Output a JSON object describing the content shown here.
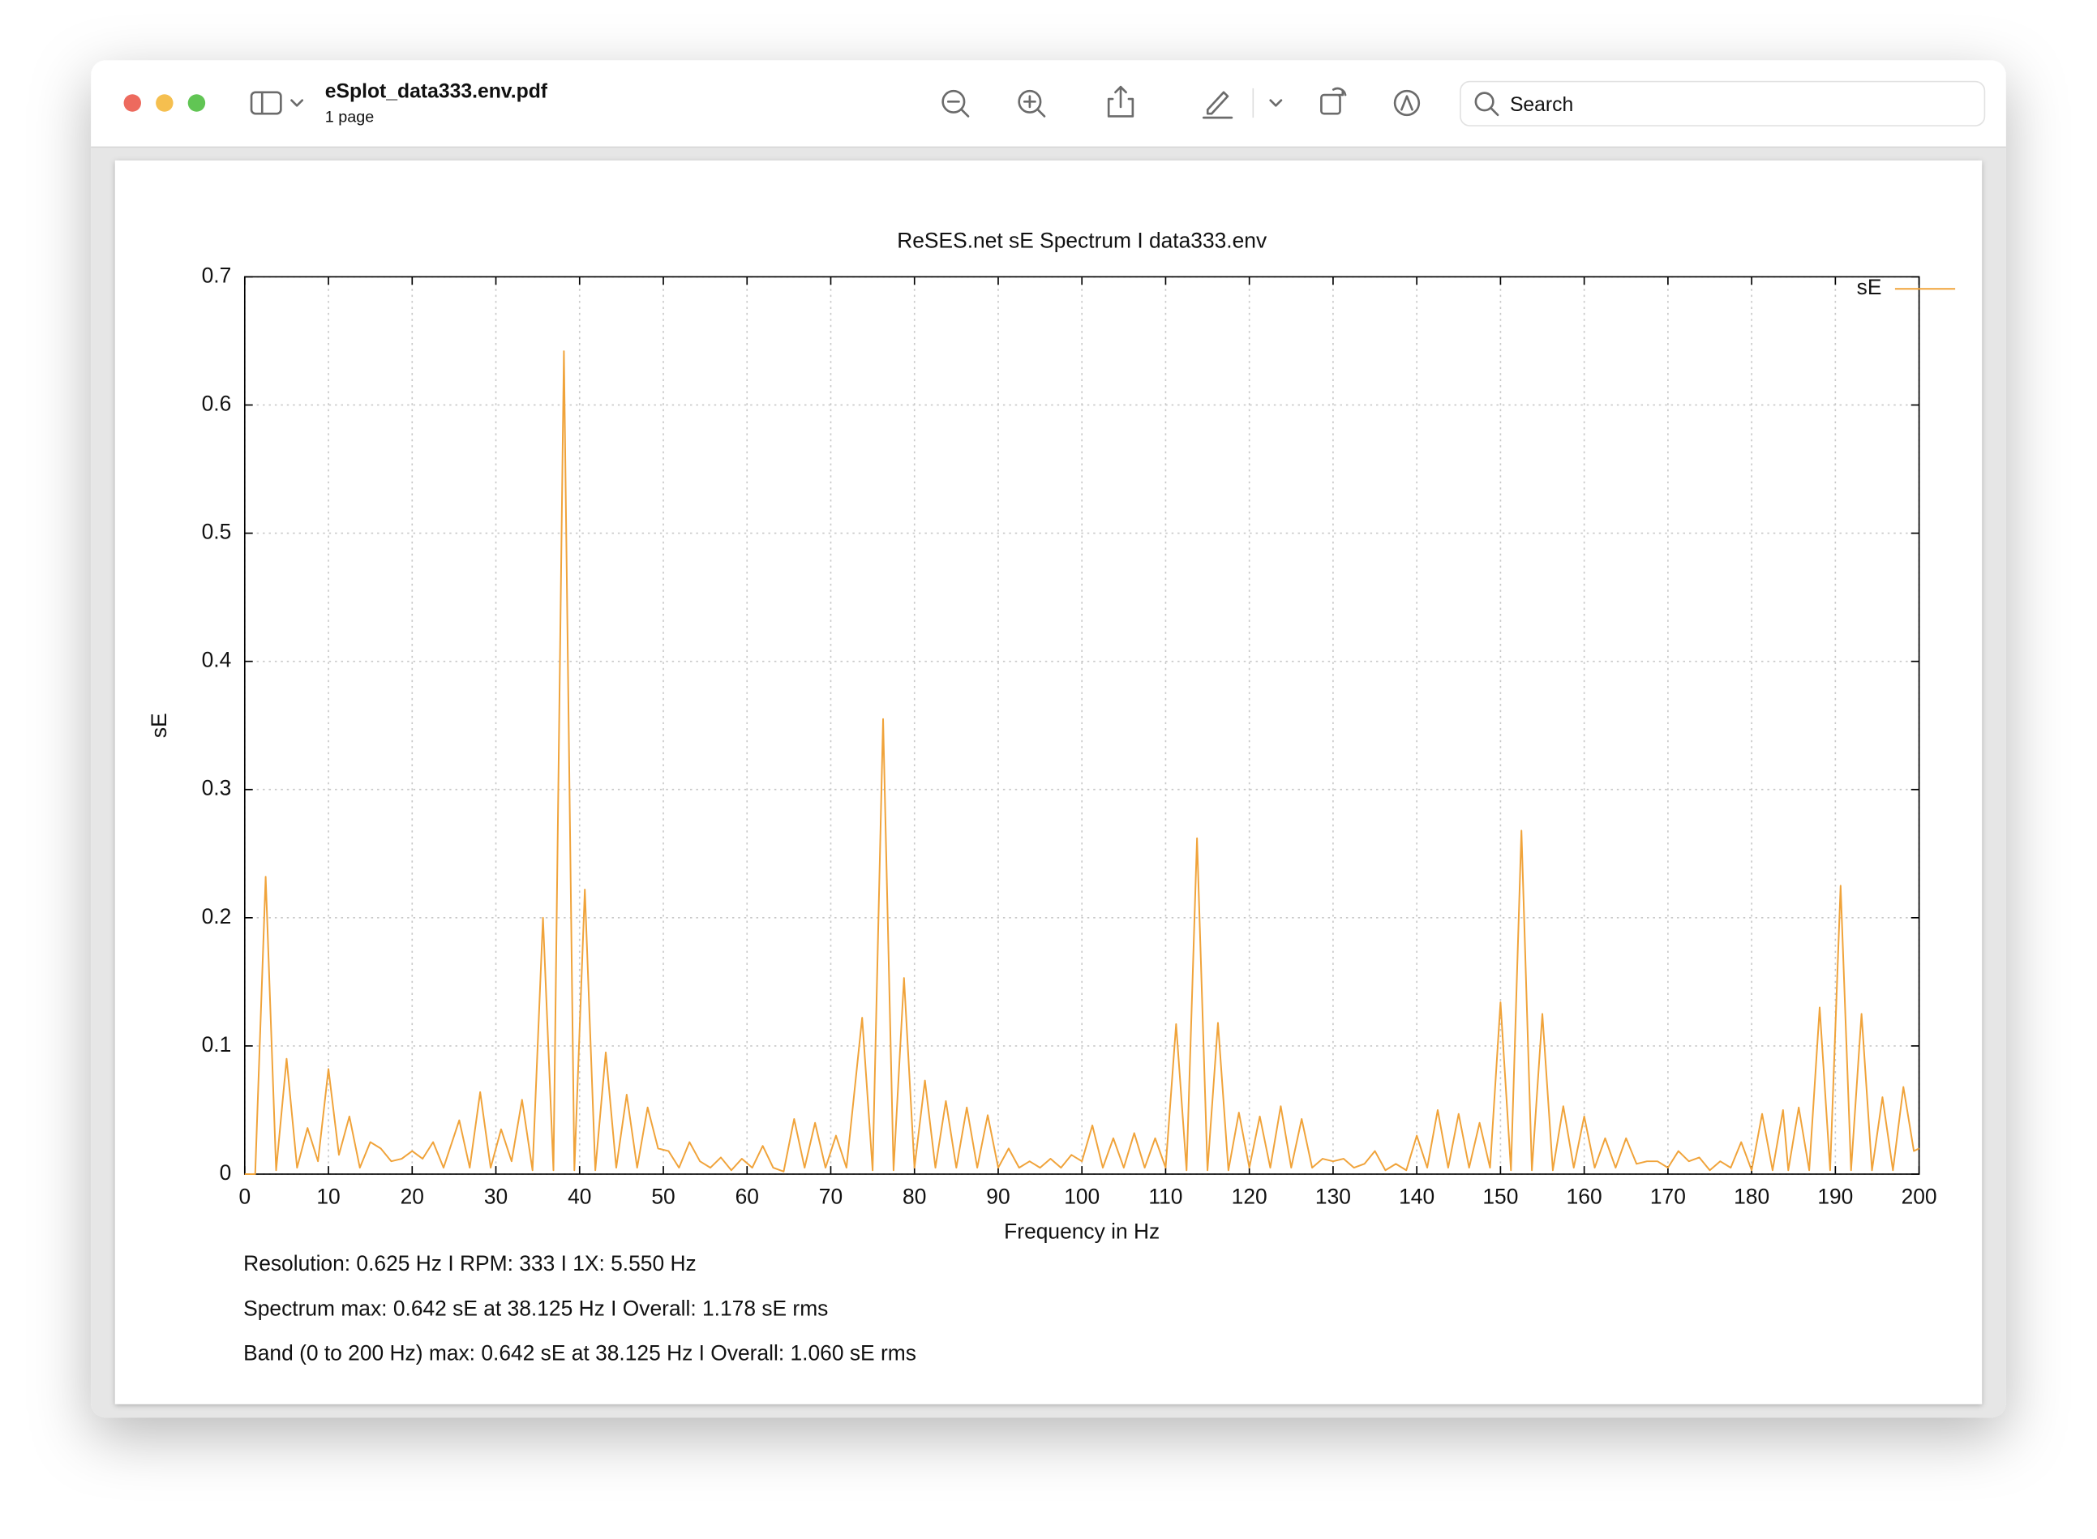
{
  "window": {
    "title": "eSplot_data333.env.pdf",
    "subtitle": "1 page",
    "search_placeholder": "Search"
  },
  "chart_data": {
    "type": "line",
    "title": "ReSES.net sE Spectrum I data333.env",
    "xlabel": "Frequency in Hz",
    "ylabel": "sE",
    "x": [
      0,
      1.25,
      2.5,
      3.75,
      5,
      6.25,
      7.5,
      8.75,
      10,
      11.25,
      12.5,
      13.75,
      15,
      16.25,
      17.5,
      18.75,
      20,
      21.25,
      22.5,
      23.75,
      25.625,
      26.875,
      28.125,
      29.375,
      30.625,
      31.875,
      33.125,
      34.375,
      35.625,
      36.875,
      38.125,
      39.375,
      40.625,
      41.875,
      43.125,
      44.375,
      45.625,
      46.875,
      48.125,
      49.375,
      50.625,
      51.875,
      53.125,
      54.375,
      55.625,
      56.875,
      58.125,
      59.375,
      60.625,
      61.875,
      63.125,
      64.375,
      65.625,
      66.875,
      68.125,
      69.375,
      70.625,
      71.875,
      73.75,
      75,
      76.25,
      77.5,
      78.75,
      80,
      81.25,
      82.5,
      83.75,
      85,
      86.25,
      87.5,
      88.75,
      90,
      91.25,
      92.5,
      93.75,
      95,
      96.25,
      97.5,
      98.75,
      100,
      101.25,
      102.5,
      103.75,
      105,
      106.25,
      107.5,
      108.75,
      110,
      111.25,
      112.5,
      113.75,
      115,
      116.25,
      117.5,
      118.75,
      120,
      121.25,
      122.5,
      123.75,
      125,
      126.25,
      127.5,
      128.75,
      130,
      131.25,
      132.5,
      133.75,
      135,
      136.25,
      137.5,
      138.75,
      140,
      141.25,
      142.5,
      143.75,
      145,
      146.25,
      147.5,
      148.75,
      150,
      151.25,
      152.5,
      153.75,
      155,
      156.25,
      157.5,
      158.75,
      160,
      161.25,
      162.5,
      163.75,
      165,
      166.25,
      167.5,
      168.75,
      170,
      171.25,
      172.5,
      173.75,
      175,
      176.25,
      177.5,
      178.75,
      180,
      181.25,
      182.5,
      183.75,
      184.375,
      185.625,
      186.875,
      188.125,
      189.375,
      190.625,
      191.875,
      193.125,
      194.375,
      195.625,
      196.875,
      198.125,
      199.375,
      200
    ],
    "series": [
      {
        "name": "sE",
        "color": "#f0a33a",
        "values": [
          0,
          0,
          0.232,
          0.003,
          0.09,
          0.005,
          0.036,
          0.01,
          0.082,
          0.015,
          0.045,
          0.005,
          0.025,
          0.02,
          0.01,
          0.012,
          0.018,
          0.012,
          0.025,
          0.005,
          0.042,
          0.005,
          0.064,
          0.005,
          0.035,
          0.01,
          0.058,
          0.003,
          0.2,
          0.003,
          0.642,
          0.003,
          0.222,
          0.003,
          0.095,
          0.005,
          0.062,
          0.005,
          0.052,
          0.02,
          0.018,
          0.005,
          0.025,
          0.01,
          0.005,
          0.013,
          0.003,
          0.012,
          0.005,
          0.022,
          0.005,
          0.002,
          0.043,
          0.005,
          0.04,
          0.005,
          0.03,
          0.005,
          0.122,
          0.003,
          0.355,
          0.003,
          0.153,
          0.005,
          0.073,
          0.005,
          0.057,
          0.005,
          0.052,
          0.005,
          0.046,
          0.005,
          0.02,
          0.005,
          0.01,
          0.005,
          0.012,
          0.005,
          0.015,
          0.01,
          0.038,
          0.005,
          0.028,
          0.005,
          0.032,
          0.005,
          0.028,
          0.005,
          0.117,
          0.003,
          0.262,
          0.003,
          0.118,
          0.003,
          0.048,
          0.005,
          0.045,
          0.005,
          0.053,
          0.005,
          0.043,
          0.005,
          0.012,
          0.01,
          0.012,
          0.005,
          0.008,
          0.018,
          0.003,
          0.008,
          0.003,
          0.03,
          0.005,
          0.05,
          0.005,
          0.047,
          0.005,
          0.04,
          0.005,
          0.134,
          0.003,
          0.268,
          0.003,
          0.125,
          0.003,
          0.053,
          0.005,
          0.045,
          0.005,
          0.028,
          0.005,
          0.028,
          0.008,
          0.01,
          0.01,
          0.005,
          0.018,
          0.01,
          0.013,
          0.003,
          0.01,
          0.005,
          0.025,
          0.003,
          0.047,
          0.003,
          0.05,
          0.003,
          0.052,
          0.003,
          0.13,
          0.003,
          0.225,
          0.003,
          0.125,
          0.003,
          0.06,
          0.003,
          0.068,
          0.018,
          0.02
        ]
      }
    ],
    "xlim": [
      0,
      200
    ],
    "xticks": [
      0,
      10,
      20,
      30,
      40,
      50,
      60,
      70,
      80,
      90,
      100,
      110,
      120,
      130,
      140,
      150,
      160,
      170,
      180,
      190,
      200
    ],
    "ylim": [
      0,
      0.7
    ],
    "yticks": [
      0,
      0.1,
      0.2,
      0.3,
      0.4,
      0.5,
      0.6,
      0.7
    ],
    "grid": true,
    "legend": "top-right",
    "annotations": [
      "Resolution: 0.625 Hz I RPM: 333 I 1X: 5.550 Hz",
      "Spectrum max: 0.642 sE at 38.125 Hz I Overall: 1.178 sE rms",
      "Band (0 to 200 Hz) max: 0.642 sE at 38.125 Hz I Overall: 1.060 sE rms"
    ]
  }
}
